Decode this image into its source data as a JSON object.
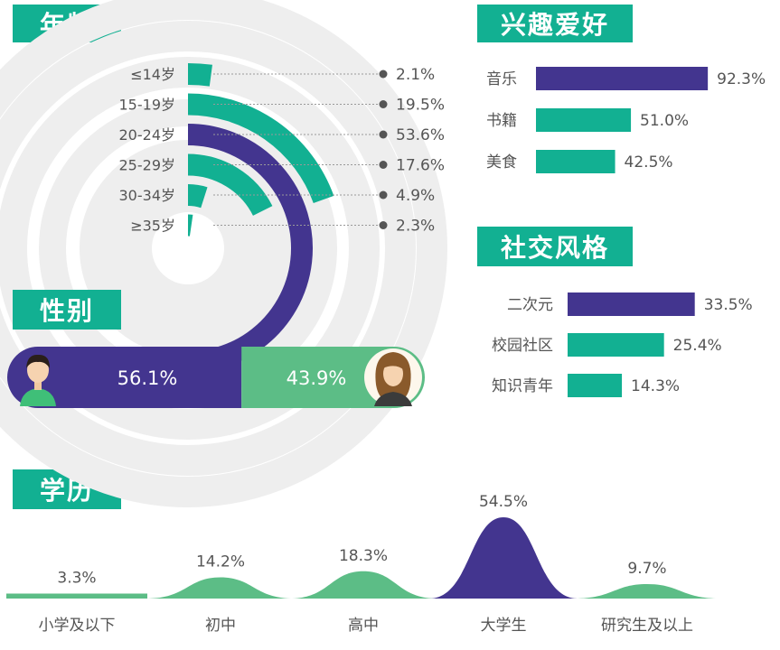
{
  "sections": {
    "age": "年龄",
    "gender": "性别",
    "interests": "兴趣爱好",
    "social": "社交风格",
    "education": "学历"
  },
  "colors": {
    "teal": "#12b092",
    "purple": "#43358f",
    "green": "#5cbd86",
    "ring": "#eeeeee"
  },
  "chart_data": [
    {
      "id": "age",
      "type": "radial-bar",
      "title": "年龄",
      "categories": [
        "≤14岁",
        "15-19岁",
        "20-24岁",
        "25-29岁",
        "30-34岁",
        "≥35岁"
      ],
      "values": [
        2.1,
        19.5,
        53.6,
        17.6,
        4.9,
        2.3
      ],
      "labels": [
        "2.1%",
        "19.5%",
        "53.6%",
        "17.6%",
        "4.9%",
        "2.3%"
      ],
      "highlight": "20-24岁"
    },
    {
      "id": "gender",
      "type": "stacked-bar",
      "title": "性别",
      "categories": [
        "男",
        "女"
      ],
      "values": [
        56.1,
        43.9
      ],
      "labels": [
        "56.1%",
        "43.9%"
      ]
    },
    {
      "id": "interests",
      "type": "bar",
      "title": "兴趣爱好",
      "categories": [
        "音乐",
        "书籍",
        "美食"
      ],
      "values": [
        92.3,
        51.0,
        42.5
      ],
      "labels": [
        "92.3%",
        "51.0%",
        "42.5%"
      ],
      "highlight": "音乐"
    },
    {
      "id": "social",
      "type": "bar",
      "title": "社交风格",
      "categories": [
        "二次元",
        "校园社区",
        "知识青年"
      ],
      "values": [
        33.5,
        25.4,
        14.3
      ],
      "labels": [
        "33.5%",
        "25.4%",
        "14.3%"
      ],
      "highlight": "二次元"
    },
    {
      "id": "education",
      "type": "area",
      "title": "学历",
      "categories": [
        "小学及以下",
        "初中",
        "高中",
        "大学生",
        "研究生及以上"
      ],
      "values": [
        3.3,
        14.2,
        18.3,
        54.5,
        9.7
      ],
      "labels": [
        "3.3%",
        "14.2%",
        "18.3%",
        "54.5%",
        "9.7%"
      ],
      "highlight": "大学生"
    }
  ]
}
